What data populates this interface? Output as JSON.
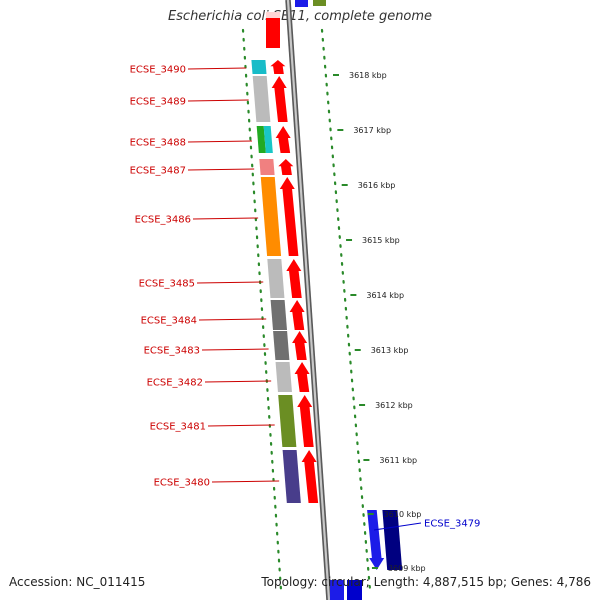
{
  "title": "Escherichia coli SE11, complete genome",
  "accession": "Accession: NC_011415",
  "summary": "Topology: circular; Length: 4,887,515 bp; Genes: 4,786",
  "colors": {
    "forward_strand": "#ff0000",
    "reverse_strand": "#0000ff",
    "backbone": "#888888",
    "ruler_dots": "#2a8a2a",
    "label_forward": "#cc0000",
    "label_reverse": "#0000cc"
  },
  "kbp_marks": [
    "3618 kbp",
    "3617 kbp",
    "3616 kbp",
    "3615 kbp",
    "3614 kbp",
    "3613 kbp",
    "3612 kbp",
    "3611 kbp",
    "3610 kbp",
    "3609 kbp"
  ],
  "genes": [
    {
      "label": "ECSE_3490",
      "strand": "forward",
      "category_color": "#18bcc8"
    },
    {
      "label": "ECSE_3489",
      "strand": "forward",
      "category_color": "#bbbbbb"
    },
    {
      "label": "ECSE_3488",
      "strand": "forward",
      "category_color": "#22aa22",
      "category_color_2": "#19c6c6"
    },
    {
      "label": "ECSE_3487",
      "strand": "forward",
      "category_color": "#f08080"
    },
    {
      "label": "ECSE_3486",
      "strand": "forward",
      "category_color": "#ff8c00"
    },
    {
      "label": "ECSE_3485",
      "strand": "forward",
      "category_color": "#bbbbbb"
    },
    {
      "label": "ECSE_3484",
      "strand": "forward",
      "category_color": "#707070"
    },
    {
      "label": "ECSE_3483",
      "strand": "forward",
      "category_color": "#707070"
    },
    {
      "label": "ECSE_3482",
      "strand": "forward",
      "category_color": "#bbbbbb"
    },
    {
      "label": "ECSE_3481",
      "strand": "forward",
      "category_color": "#6b8e23"
    },
    {
      "label": "ECSE_3480",
      "strand": "forward",
      "category_color": "#483d8b"
    },
    {
      "label": "ECSE_3479",
      "strand": "reverse",
      "category_color": "#000080"
    }
  ]
}
